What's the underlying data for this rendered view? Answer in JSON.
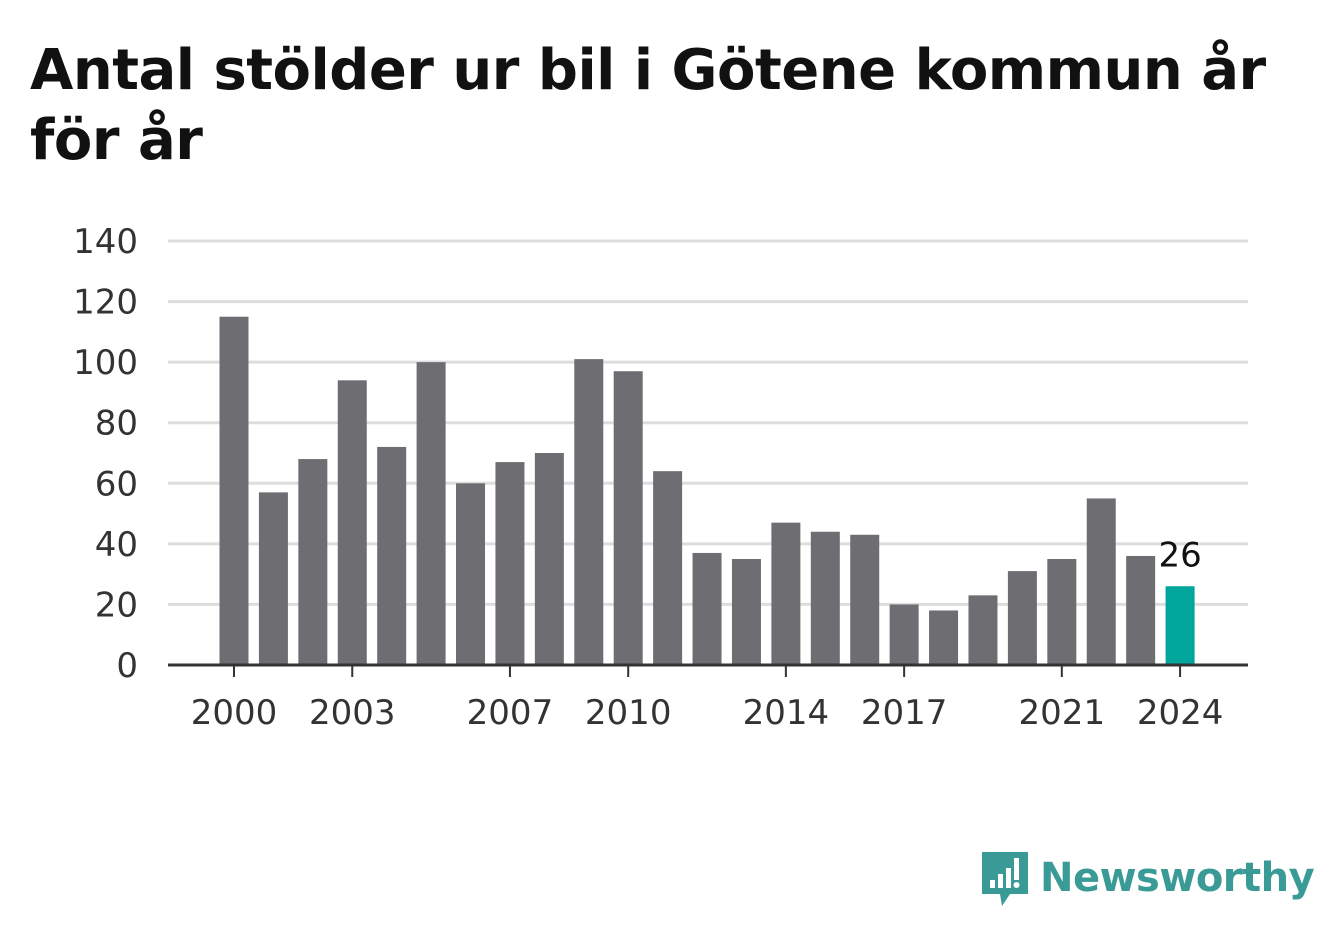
{
  "chart_data": {
    "type": "bar",
    "title": "Antal stölder ur bil i Götene kommun år för år",
    "categories": [
      "2000",
      "2001",
      "2002",
      "2003",
      "2004",
      "2005",
      "2006",
      "2007",
      "2008",
      "2009",
      "2010",
      "2011",
      "2012",
      "2013",
      "2014",
      "2015",
      "2016",
      "2017",
      "2018",
      "2019",
      "2020",
      "2021",
      "2022",
      "2023",
      "2024"
    ],
    "values": [
      115,
      57,
      68,
      94,
      72,
      100,
      60,
      67,
      70,
      101,
      97,
      64,
      37,
      35,
      47,
      44,
      43,
      20,
      18,
      23,
      31,
      35,
      55,
      36,
      26
    ],
    "x_tick_labels": [
      "2000",
      "2003",
      "2007",
      "2010",
      "2014",
      "2017",
      "2021",
      "2024"
    ],
    "y_ticks": [
      0,
      20,
      40,
      60,
      80,
      100,
      120,
      140
    ],
    "ylim": [
      0,
      140
    ],
    "xlabel": "",
    "ylabel": "",
    "grid": true,
    "highlight": {
      "category": "2024",
      "label": "26"
    },
    "colors": {
      "bar": "#6e6d72",
      "highlight": "#00a59b",
      "grid": "#dddddd",
      "axis": "#333333"
    }
  },
  "brand": {
    "name": "Newsworthy",
    "icon": "newsworthy-logo-icon",
    "color": "#3a9a96"
  }
}
